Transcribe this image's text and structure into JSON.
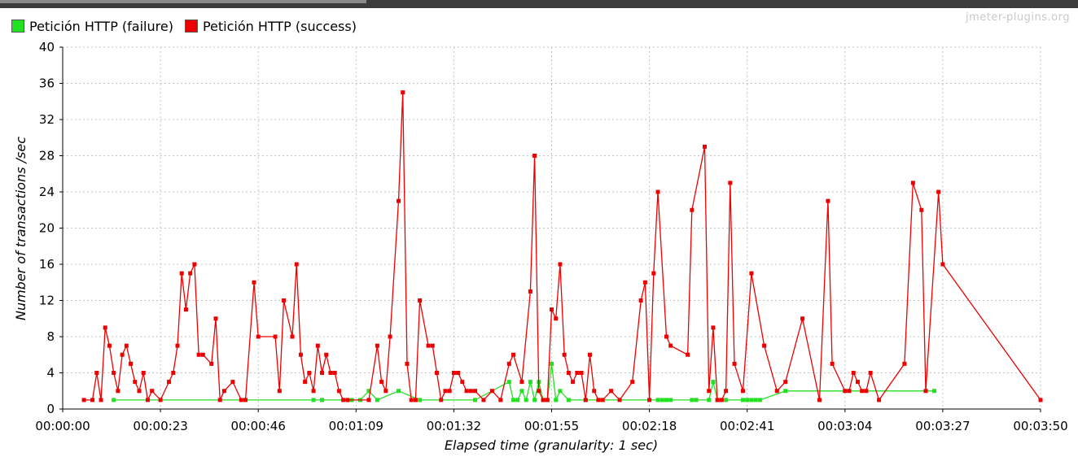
{
  "watermark": "jmeter-plugins.org",
  "chart_data": {
    "type": "line",
    "title": "",
    "xlabel": "Elapsed time (granularity: 1 sec)",
    "ylabel": "Number of transactions /sec",
    "xlim": [
      0,
      230
    ],
    "ylim": [
      0,
      40
    ],
    "x_ticks": [
      0,
      23,
      46,
      69,
      92,
      115,
      138,
      161,
      184,
      207,
      230
    ],
    "x_tick_labels": [
      "00:00:00",
      "00:00:23",
      "00:00:46",
      "00:01:09",
      "00:01:32",
      "00:01:55",
      "00:02:18",
      "00:02:41",
      "00:03:04",
      "00:03:27",
      "00:03:50"
    ],
    "y_ticks": [
      0,
      4,
      8,
      12,
      16,
      20,
      24,
      28,
      32,
      36,
      40
    ],
    "y_tick_labels": [
      "0",
      "4",
      "8",
      "12",
      "16",
      "20",
      "24",
      "28",
      "32",
      "36",
      "40"
    ],
    "grid": true,
    "legend_position": "top-left",
    "series": [
      {
        "name": "Petición HTTP (failure)",
        "color": "#22e022",
        "x": [
          12,
          59,
          61,
          68,
          70,
          72,
          74,
          79,
          84,
          97,
          105,
          106,
          107,
          108,
          109,
          110,
          111,
          112,
          113,
          114,
          115,
          116,
          117,
          119,
          123,
          140,
          141,
          142,
          143,
          148,
          149,
          152,
          153,
          154,
          156,
          160,
          161,
          162,
          163,
          164,
          170,
          205
        ],
        "values": [
          1,
          1,
          1,
          1,
          1,
          2,
          1,
          2,
          1,
          1,
          3,
          1,
          1,
          2,
          1,
          3,
          1,
          3,
          1,
          1,
          5,
          1,
          2,
          1,
          1,
          1,
          1,
          1,
          1,
          1,
          1,
          1,
          3,
          1,
          1,
          1,
          1,
          1,
          1,
          1,
          2,
          2
        ]
      },
      {
        "name": "Petición HTTP (success)",
        "color": "#ee0000",
        "x": [
          5,
          7,
          8,
          9,
          10,
          11,
          12,
          13,
          14,
          15,
          16,
          17,
          18,
          19,
          20,
          21,
          23,
          25,
          26,
          27,
          28,
          29,
          30,
          31,
          32,
          33,
          35,
          36,
          37,
          38,
          40,
          42,
          43,
          45,
          46,
          50,
          51,
          52,
          54,
          55,
          56,
          57,
          58,
          59,
          60,
          61,
          62,
          63,
          64,
          65,
          66,
          67,
          72,
          74,
          75,
          76,
          77,
          79,
          80,
          81,
          82,
          83,
          84,
          86,
          87,
          88,
          89,
          90,
          91,
          92,
          93,
          94,
          95,
          96,
          97,
          99,
          101,
          103,
          105,
          106,
          108,
          110,
          111,
          112,
          113,
          114,
          115,
          116,
          117,
          118,
          119,
          120,
          121,
          122,
          123,
          124,
          125,
          126,
          127,
          129,
          131,
          134,
          136,
          137,
          138,
          139,
          140,
          142,
          143,
          147,
          148,
          151,
          152,
          153,
          154,
          155,
          156,
          157,
          158,
          160,
          162,
          165,
          168,
          170,
          174,
          178,
          180,
          181,
          184,
          185,
          186,
          187,
          188,
          189,
          190,
          192,
          198,
          200,
          202,
          203,
          206,
          207,
          230
        ],
        "values": [
          1,
          1,
          4,
          1,
          9,
          7,
          4,
          2,
          6,
          7,
          5,
          3,
          2,
          4,
          1,
          2,
          1,
          3,
          4,
          7,
          15,
          11,
          15,
          16,
          6,
          6,
          5,
          10,
          1,
          2,
          3,
          1,
          1,
          14,
          8,
          8,
          2,
          12,
          8,
          16,
          6,
          3,
          4,
          2,
          7,
          4,
          6,
          4,
          4,
          2,
          1,
          1,
          1,
          7,
          3,
          2,
          8,
          23,
          35,
          5,
          1,
          1,
          12,
          7,
          7,
          4,
          1,
          2,
          2,
          4,
          4,
          3,
          2,
          2,
          2,
          1,
          2,
          1,
          5,
          6,
          3,
          13,
          28,
          2,
          1,
          1,
          11,
          10,
          16,
          6,
          4,
          3,
          4,
          4,
          1,
          6,
          2,
          1,
          1,
          2,
          1,
          3,
          12,
          14,
          1,
          15,
          24,
          8,
          7,
          6,
          22,
          29,
          2,
          9,
          1,
          1,
          2,
          25,
          5,
          2,
          15,
          7,
          2,
          3,
          10,
          1,
          23,
          5,
          2,
          2,
          4,
          3,
          2,
          2,
          4,
          1,
          5,
          25,
          22,
          2,
          24,
          16,
          1
        ]
      }
    ]
  }
}
